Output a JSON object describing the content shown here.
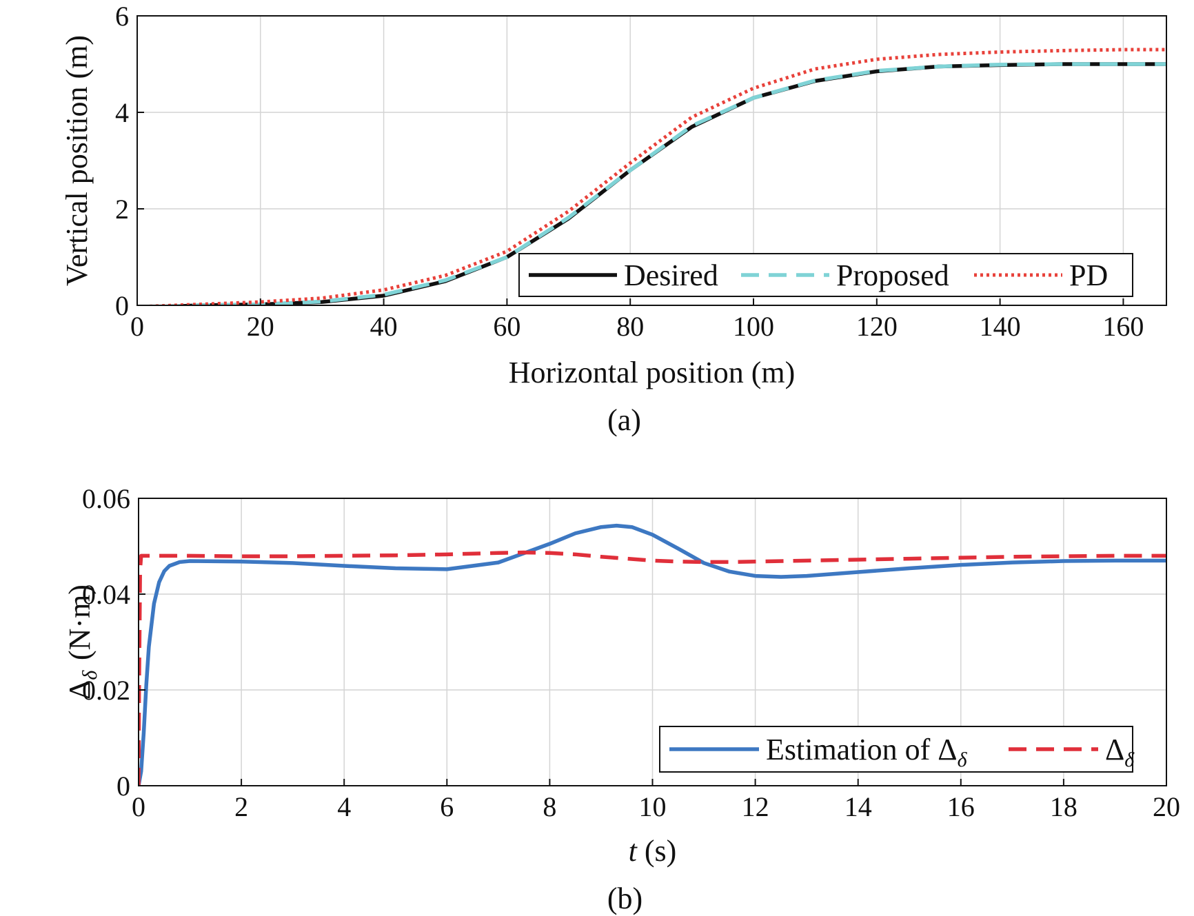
{
  "chart_data": [
    {
      "type": "line",
      "panel_label": "(a)",
      "xlabel": "Horizontal position (m)",
      "ylabel": "Vertical position (m)",
      "xlim": [
        0,
        167
      ],
      "ylim": [
        0,
        6
      ],
      "xticks": [
        0,
        20,
        40,
        60,
        80,
        100,
        120,
        140,
        160
      ],
      "yticks": [
        0,
        2,
        4,
        6
      ],
      "grid": true,
      "legend_position": "bottom-right",
      "series": [
        {
          "name": "Desired",
          "color": "#111111",
          "style": "solid",
          "x": [
            0,
            10,
            20,
            30,
            40,
            50,
            60,
            70,
            80,
            90,
            100,
            110,
            120,
            130,
            140,
            150,
            160,
            167
          ],
          "y": [
            -0.05,
            0.0,
            0.02,
            0.07,
            0.2,
            0.5,
            1.0,
            1.8,
            2.8,
            3.7,
            4.3,
            4.65,
            4.85,
            4.95,
            4.98,
            5.0,
            5.0,
            5.0
          ]
        },
        {
          "name": "Proposed",
          "color": "#7fd3d6",
          "style": "dashed",
          "x": [
            0,
            10,
            20,
            30,
            40,
            50,
            60,
            70,
            80,
            90,
            100,
            110,
            120,
            130,
            140,
            150,
            160,
            167
          ],
          "y": [
            -0.05,
            0.0,
            0.02,
            0.08,
            0.22,
            0.52,
            1.0,
            1.82,
            2.8,
            3.72,
            4.3,
            4.66,
            4.86,
            4.95,
            4.99,
            5.0,
            5.0,
            5.0
          ]
        },
        {
          "name": "PD",
          "color": "#e8413a",
          "style": "dotted",
          "x": [
            0,
            10,
            20,
            30,
            40,
            50,
            60,
            70,
            80,
            90,
            100,
            110,
            120,
            130,
            140,
            150,
            160,
            167
          ],
          "y": [
            -0.03,
            0.02,
            0.07,
            0.15,
            0.32,
            0.62,
            1.12,
            1.95,
            2.95,
            3.9,
            4.5,
            4.9,
            5.1,
            5.2,
            5.25,
            5.28,
            5.3,
            5.3
          ]
        }
      ]
    },
    {
      "type": "line",
      "panel_label": "(b)",
      "xlabel": "t (s)",
      "ylabel": "Δδ (N·m)",
      "xlim": [
        0,
        20
      ],
      "ylim": [
        0,
        0.06
      ],
      "xticks": [
        0,
        2,
        4,
        6,
        8,
        10,
        12,
        14,
        16,
        18,
        20
      ],
      "yticks": [
        "0",
        "0.02",
        "0.04",
        "0.06"
      ],
      "grid": true,
      "legend_position": "bottom-right",
      "series": [
        {
          "name": "Estimation of Δδ",
          "color": "#3d78c2",
          "style": "solid",
          "x": [
            0,
            0.05,
            0.1,
            0.15,
            0.2,
            0.3,
            0.4,
            0.5,
            0.6,
            0.8,
            1,
            2,
            3,
            4,
            5,
            6,
            7,
            8,
            8.5,
            9,
            9.3,
            9.6,
            10,
            10.5,
            11,
            11.5,
            12,
            12.5,
            13,
            14,
            15,
            16,
            17,
            18,
            19,
            20
          ],
          "y": [
            0,
            0.003,
            0.011,
            0.021,
            0.029,
            0.038,
            0.0425,
            0.0448,
            0.0459,
            0.0467,
            0.0469,
            0.0468,
            0.0465,
            0.0459,
            0.0454,
            0.0452,
            0.0466,
            0.0505,
            0.0527,
            0.054,
            0.0543,
            0.054,
            0.0524,
            0.0495,
            0.0465,
            0.0447,
            0.0438,
            0.0436,
            0.0438,
            0.0446,
            0.0454,
            0.0461,
            0.0466,
            0.0469,
            0.047,
            0.047
          ]
        },
        {
          "name": "Δδ",
          "color": "#e02f3a",
          "style": "dashed",
          "x": [
            0,
            0.01,
            0.03,
            0.05,
            1,
            2,
            3,
            4,
            5,
            6,
            7,
            7.5,
            8,
            8.5,
            9,
            9.5,
            10,
            10.5,
            11,
            11.5,
            12,
            13,
            14,
            15,
            16,
            17,
            18,
            19,
            20
          ],
          "y": [
            0,
            0.02,
            0.045,
            0.048,
            0.048,
            0.0479,
            0.0479,
            0.048,
            0.0481,
            0.0483,
            0.0486,
            0.0487,
            0.0486,
            0.0483,
            0.0478,
            0.0474,
            0.047,
            0.0468,
            0.0467,
            0.0467,
            0.0468,
            0.047,
            0.0472,
            0.0474,
            0.0476,
            0.0478,
            0.0479,
            0.048,
            0.048
          ]
        }
      ]
    }
  ]
}
